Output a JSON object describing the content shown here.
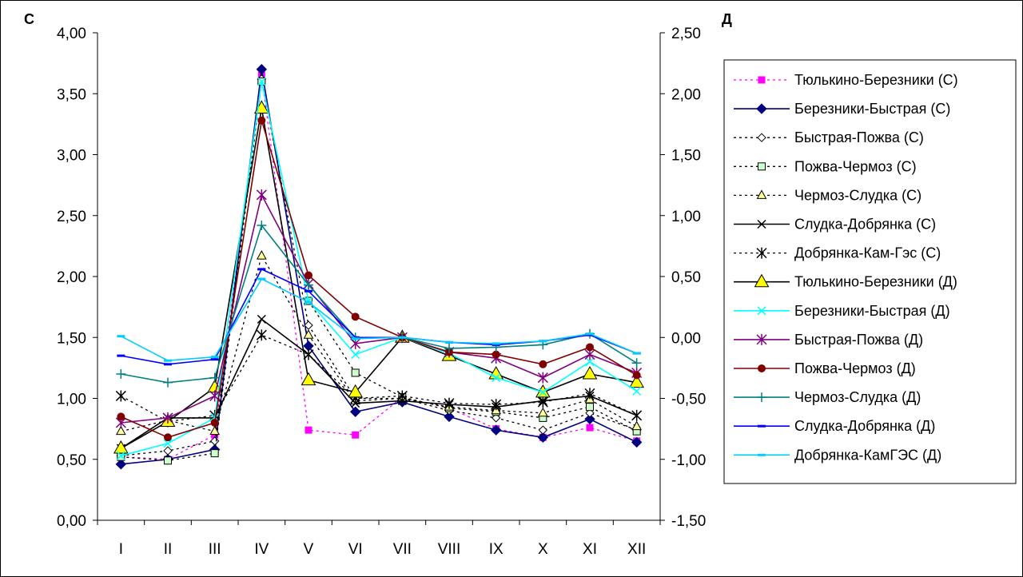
{
  "chart_data": {
    "type": "line",
    "categories": [
      "I",
      "II",
      "III",
      "IV",
      "V",
      "VI",
      "VII",
      "VIII",
      "IX",
      "X",
      "XI",
      "XII"
    ],
    "left_axis": {
      "label": "С",
      "ylim": [
        0,
        4
      ],
      "ticks": [
        "0,00",
        "0,50",
        "1,00",
        "1,50",
        "2,00",
        "2,50",
        "3,00",
        "3,50",
        "4,00"
      ]
    },
    "right_axis": {
      "label": "Д",
      "ylim": [
        -1.5,
        2.5
      ],
      "ticks": [
        "-1,50",
        "-1,00",
        "-0,50",
        "0,00",
        "0,50",
        "1,00",
        "1,50",
        "2,00",
        "2,50"
      ]
    },
    "grid": false,
    "legend_position": "right",
    "series": [
      {
        "name": "Тюлькино-Березники (С)",
        "axis": "left",
        "color": "#ff00ff",
        "dash": "dot",
        "marker": "square",
        "values": [
          0.52,
          0.5,
          0.7,
          3.65,
          0.74,
          0.7,
          1.01,
          0.92,
          0.75,
          0.68,
          0.76,
          0.65
        ]
      },
      {
        "name": "Березники-Быстрая (С)",
        "axis": "left",
        "color": "#000080",
        "dash": "solid",
        "marker": "diamond",
        "values": [
          0.46,
          0.5,
          0.58,
          3.7,
          1.43,
          0.89,
          0.97,
          0.85,
          0.74,
          0.68,
          0.83,
          0.64
        ]
      },
      {
        "name": "Быстрая-Пожва (С)",
        "axis": "left",
        "color": "#000000",
        "dash": "dot",
        "marker": "diamond-open",
        "values": [
          0.53,
          0.57,
          0.65,
          3.62,
          1.6,
          1.0,
          1.0,
          0.9,
          0.84,
          0.74,
          0.88,
          0.74
        ]
      },
      {
        "name": "Пожва-Чермоз (С)",
        "axis": "left",
        "color": "#000000",
        "dash": "dot",
        "marker": "square-open",
        "values": [
          0.52,
          0.49,
          0.55,
          3.6,
          1.8,
          1.21,
          1.01,
          0.92,
          0.89,
          0.84,
          0.93,
          0.73
        ]
      },
      {
        "name": "Чермоз-Слудка (С)",
        "axis": "left",
        "color": "#000000",
        "dash": "dot",
        "marker": "triangle-small",
        "values": [
          0.73,
          0.82,
          0.73,
          2.17,
          1.52,
          0.98,
          1.0,
          0.93,
          0.9,
          0.88,
          0.99,
          0.77
        ]
      },
      {
        "name": "Слудка-Добрянка (С)",
        "axis": "left",
        "color": "#000000",
        "dash": "solid",
        "marker": "x",
        "values": [
          0.59,
          0.84,
          0.84,
          1.65,
          1.36,
          0.96,
          0.98,
          0.95,
          0.93,
          0.98,
          1.02,
          0.86
        ]
      },
      {
        "name": "Добрянка-Кам-Гэс (С)",
        "axis": "left",
        "color": "#000000",
        "dash": "dot",
        "marker": "star",
        "values": [
          1.02,
          0.81,
          0.86,
          1.52,
          1.36,
          1.0,
          1.02,
          0.96,
          0.95,
          0.97,
          1.04,
          0.86
        ]
      },
      {
        "name": "Тюлькино-Березники (Д)",
        "axis": "right",
        "color": "#000000",
        "dash": "solid",
        "marker": "triangle-yellow",
        "values": [
          -0.91,
          -0.69,
          -0.41,
          1.88,
          -0.35,
          -0.45,
          0.0,
          -0.15,
          -0.3,
          -0.45,
          -0.3,
          -0.37
        ]
      },
      {
        "name": "Березники-Быстрая (Д)",
        "axis": "right",
        "color": "#00ffff",
        "dash": "solid",
        "marker": "x",
        "values": [
          -0.97,
          -0.87,
          -0.66,
          2.1,
          0.3,
          -0.14,
          0.0,
          -0.13,
          -0.33,
          -0.45,
          -0.2,
          -0.44
        ]
      },
      {
        "name": "Быстрая-Пожва (Д)",
        "axis": "right",
        "color": "#800080",
        "dash": "solid",
        "marker": "star",
        "values": [
          -0.7,
          -0.66,
          -0.48,
          1.17,
          0.44,
          -0.05,
          0.0,
          -0.12,
          -0.17,
          -0.33,
          -0.14,
          -0.29
        ]
      },
      {
        "name": "Пожва-Чермоз (Д)",
        "axis": "right",
        "color": "#800000",
        "dash": "solid",
        "marker": "circle",
        "values": [
          -0.65,
          -0.82,
          -0.7,
          1.78,
          0.51,
          0.17,
          0.0,
          -0.12,
          -0.14,
          -0.22,
          -0.08,
          -0.31
        ]
      },
      {
        "name": "Чермоз-Слудка (Д)",
        "axis": "right",
        "color": "#008080",
        "dash": "solid",
        "marker": "plus",
        "values": [
          -0.3,
          -0.37,
          -0.33,
          0.92,
          0.43,
          0.0,
          0.0,
          -0.09,
          -0.08,
          -0.06,
          0.03,
          -0.21
        ]
      },
      {
        "name": "Слудка-Добрянка (Д)",
        "axis": "right",
        "color": "#0000ff",
        "dash": "solid",
        "marker": "dash",
        "values": [
          -0.15,
          -0.22,
          -0.18,
          0.56,
          0.38,
          0.0,
          0.0,
          -0.04,
          -0.06,
          -0.03,
          0.02,
          -0.13
        ]
      },
      {
        "name": "Добрянка-КамГЭС (Д)",
        "axis": "right",
        "color": "#00ccff",
        "dash": "solid",
        "marker": "dash",
        "values": [
          0.01,
          -0.19,
          -0.16,
          0.48,
          0.29,
          -0.01,
          0.0,
          -0.04,
          -0.05,
          -0.03,
          0.03,
          -0.13
        ]
      }
    ]
  }
}
